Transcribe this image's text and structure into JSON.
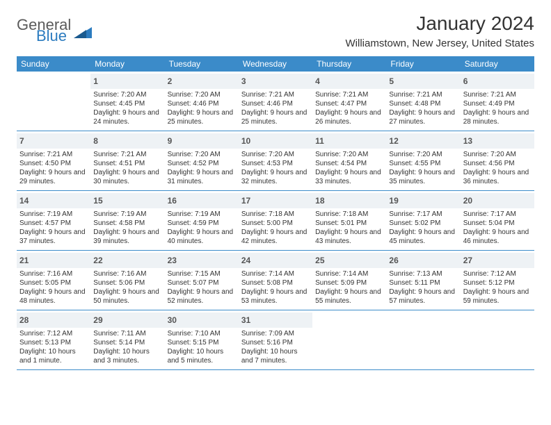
{
  "logo": {
    "text1": "General",
    "text2": "Blue"
  },
  "title": "January 2024",
  "location": "Williamstown, New Jersey, United States",
  "colors": {
    "header_bg": "#3b8bc9",
    "header_fg": "#ffffff",
    "daynum_bg": "#eef2f5",
    "border": "#3b8bc9",
    "logo_blue": "#2b7bbf",
    "text": "#333333"
  },
  "dow": [
    "Sunday",
    "Monday",
    "Tuesday",
    "Wednesday",
    "Thursday",
    "Friday",
    "Saturday"
  ],
  "weeks": [
    [
      {
        "n": "",
        "sr": "",
        "ss": "",
        "dl": ""
      },
      {
        "n": "1",
        "sr": "Sunrise: 7:20 AM",
        "ss": "Sunset: 4:45 PM",
        "dl": "Daylight: 9 hours and 24 minutes."
      },
      {
        "n": "2",
        "sr": "Sunrise: 7:20 AM",
        "ss": "Sunset: 4:46 PM",
        "dl": "Daylight: 9 hours and 25 minutes."
      },
      {
        "n": "3",
        "sr": "Sunrise: 7:21 AM",
        "ss": "Sunset: 4:46 PM",
        "dl": "Daylight: 9 hours and 25 minutes."
      },
      {
        "n": "4",
        "sr": "Sunrise: 7:21 AM",
        "ss": "Sunset: 4:47 PM",
        "dl": "Daylight: 9 hours and 26 minutes."
      },
      {
        "n": "5",
        "sr": "Sunrise: 7:21 AM",
        "ss": "Sunset: 4:48 PM",
        "dl": "Daylight: 9 hours and 27 minutes."
      },
      {
        "n": "6",
        "sr": "Sunrise: 7:21 AM",
        "ss": "Sunset: 4:49 PM",
        "dl": "Daylight: 9 hours and 28 minutes."
      }
    ],
    [
      {
        "n": "7",
        "sr": "Sunrise: 7:21 AM",
        "ss": "Sunset: 4:50 PM",
        "dl": "Daylight: 9 hours and 29 minutes."
      },
      {
        "n": "8",
        "sr": "Sunrise: 7:21 AM",
        "ss": "Sunset: 4:51 PM",
        "dl": "Daylight: 9 hours and 30 minutes."
      },
      {
        "n": "9",
        "sr": "Sunrise: 7:20 AM",
        "ss": "Sunset: 4:52 PM",
        "dl": "Daylight: 9 hours and 31 minutes."
      },
      {
        "n": "10",
        "sr": "Sunrise: 7:20 AM",
        "ss": "Sunset: 4:53 PM",
        "dl": "Daylight: 9 hours and 32 minutes."
      },
      {
        "n": "11",
        "sr": "Sunrise: 7:20 AM",
        "ss": "Sunset: 4:54 PM",
        "dl": "Daylight: 9 hours and 33 minutes."
      },
      {
        "n": "12",
        "sr": "Sunrise: 7:20 AM",
        "ss": "Sunset: 4:55 PM",
        "dl": "Daylight: 9 hours and 35 minutes."
      },
      {
        "n": "13",
        "sr": "Sunrise: 7:20 AM",
        "ss": "Sunset: 4:56 PM",
        "dl": "Daylight: 9 hours and 36 minutes."
      }
    ],
    [
      {
        "n": "14",
        "sr": "Sunrise: 7:19 AM",
        "ss": "Sunset: 4:57 PM",
        "dl": "Daylight: 9 hours and 37 minutes."
      },
      {
        "n": "15",
        "sr": "Sunrise: 7:19 AM",
        "ss": "Sunset: 4:58 PM",
        "dl": "Daylight: 9 hours and 39 minutes."
      },
      {
        "n": "16",
        "sr": "Sunrise: 7:19 AM",
        "ss": "Sunset: 4:59 PM",
        "dl": "Daylight: 9 hours and 40 minutes."
      },
      {
        "n": "17",
        "sr": "Sunrise: 7:18 AM",
        "ss": "Sunset: 5:00 PM",
        "dl": "Daylight: 9 hours and 42 minutes."
      },
      {
        "n": "18",
        "sr": "Sunrise: 7:18 AM",
        "ss": "Sunset: 5:01 PM",
        "dl": "Daylight: 9 hours and 43 minutes."
      },
      {
        "n": "19",
        "sr": "Sunrise: 7:17 AM",
        "ss": "Sunset: 5:02 PM",
        "dl": "Daylight: 9 hours and 45 minutes."
      },
      {
        "n": "20",
        "sr": "Sunrise: 7:17 AM",
        "ss": "Sunset: 5:04 PM",
        "dl": "Daylight: 9 hours and 46 minutes."
      }
    ],
    [
      {
        "n": "21",
        "sr": "Sunrise: 7:16 AM",
        "ss": "Sunset: 5:05 PM",
        "dl": "Daylight: 9 hours and 48 minutes."
      },
      {
        "n": "22",
        "sr": "Sunrise: 7:16 AM",
        "ss": "Sunset: 5:06 PM",
        "dl": "Daylight: 9 hours and 50 minutes."
      },
      {
        "n": "23",
        "sr": "Sunrise: 7:15 AM",
        "ss": "Sunset: 5:07 PM",
        "dl": "Daylight: 9 hours and 52 minutes."
      },
      {
        "n": "24",
        "sr": "Sunrise: 7:14 AM",
        "ss": "Sunset: 5:08 PM",
        "dl": "Daylight: 9 hours and 53 minutes."
      },
      {
        "n": "25",
        "sr": "Sunrise: 7:14 AM",
        "ss": "Sunset: 5:09 PM",
        "dl": "Daylight: 9 hours and 55 minutes."
      },
      {
        "n": "26",
        "sr": "Sunrise: 7:13 AM",
        "ss": "Sunset: 5:11 PM",
        "dl": "Daylight: 9 hours and 57 minutes."
      },
      {
        "n": "27",
        "sr": "Sunrise: 7:12 AM",
        "ss": "Sunset: 5:12 PM",
        "dl": "Daylight: 9 hours and 59 minutes."
      }
    ],
    [
      {
        "n": "28",
        "sr": "Sunrise: 7:12 AM",
        "ss": "Sunset: 5:13 PM",
        "dl": "Daylight: 10 hours and 1 minute."
      },
      {
        "n": "29",
        "sr": "Sunrise: 7:11 AM",
        "ss": "Sunset: 5:14 PM",
        "dl": "Daylight: 10 hours and 3 minutes."
      },
      {
        "n": "30",
        "sr": "Sunrise: 7:10 AM",
        "ss": "Sunset: 5:15 PM",
        "dl": "Daylight: 10 hours and 5 minutes."
      },
      {
        "n": "31",
        "sr": "Sunrise: 7:09 AM",
        "ss": "Sunset: 5:16 PM",
        "dl": "Daylight: 10 hours and 7 minutes."
      },
      {
        "n": "",
        "sr": "",
        "ss": "",
        "dl": ""
      },
      {
        "n": "",
        "sr": "",
        "ss": "",
        "dl": ""
      },
      {
        "n": "",
        "sr": "",
        "ss": "",
        "dl": ""
      }
    ]
  ]
}
